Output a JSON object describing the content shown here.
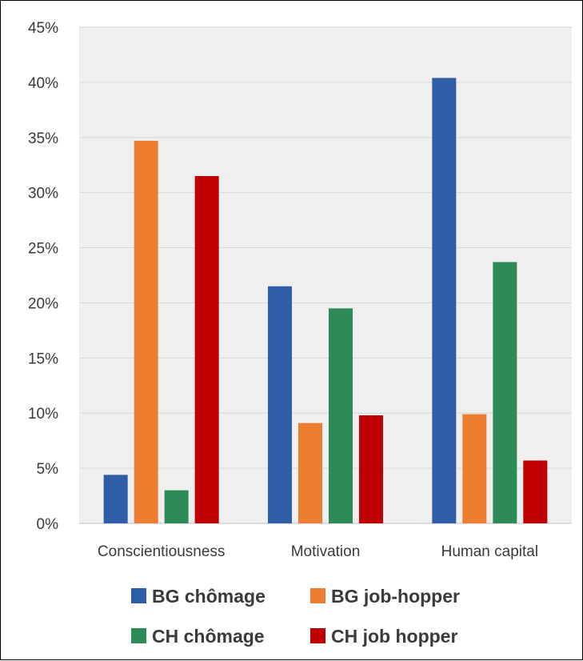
{
  "chart_data": {
    "type": "bar",
    "title": "",
    "xlabel": "",
    "ylabel": "",
    "categories": [
      "Conscientiousness",
      "Motivation",
      "Human capital"
    ],
    "ylim": [
      0,
      45
    ],
    "yticks": [
      0,
      5,
      10,
      15,
      20,
      25,
      30,
      35,
      40,
      45
    ],
    "ytick_labels": [
      "0%",
      "5%",
      "10%",
      "15%",
      "20%",
      "25%",
      "30%",
      "35%",
      "40%",
      "45%"
    ],
    "grid": true,
    "legend_position": "bottom",
    "series": [
      {
        "name": "BG chômage",
        "color": "#2f5ea8",
        "values": [
          4.4,
          21.5,
          40.4
        ]
      },
      {
        "name": "BG job-hopper",
        "color": "#ed7d31",
        "values": [
          34.7,
          9.1,
          9.9
        ]
      },
      {
        "name": "CH chômage",
        "color": "#2e8b57",
        "values": [
          3.0,
          19.5,
          23.7
        ]
      },
      {
        "name": "CH job hopper",
        "color": "#c00000",
        "values": [
          31.5,
          9.8,
          5.7
        ]
      }
    ]
  }
}
